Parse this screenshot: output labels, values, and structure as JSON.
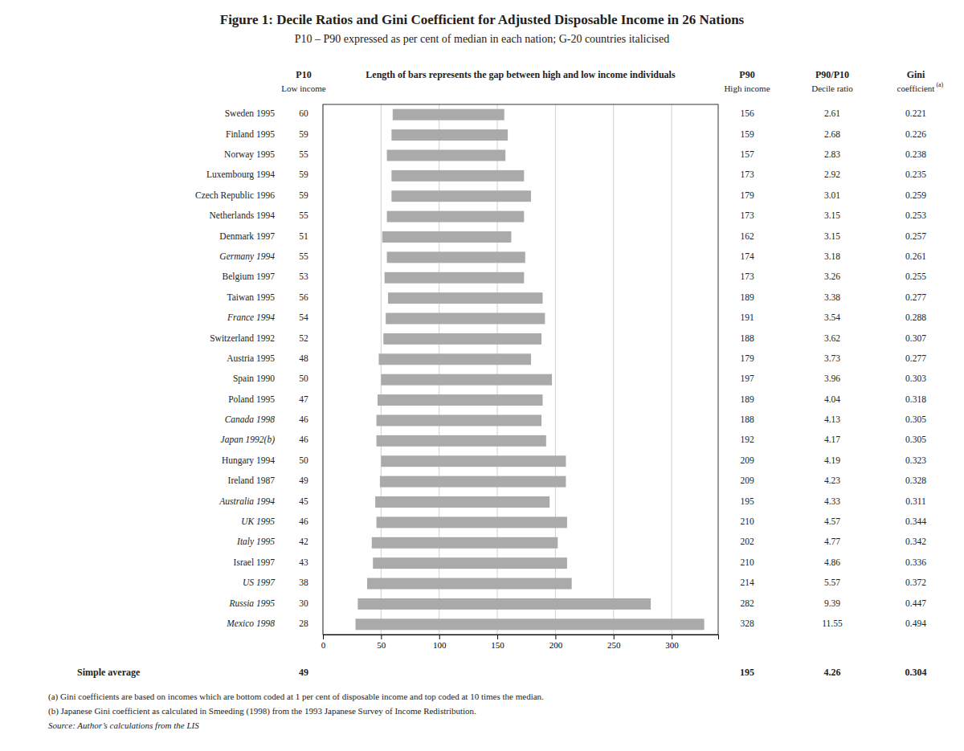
{
  "chart_data": {
    "type": "bar",
    "orientation": "horizontal",
    "title": "Figure 1: Decile Ratios and Gini Coefficient for Adjusted Disposable Income in 26 Nations",
    "subtitle": "P10 – P90 expressed as per cent of median in each nation; G-20 countries italicised",
    "categories": [
      "Sweden 1995",
      "Finland 1995",
      "Norway 1995",
      "Luxembourg 1994",
      "Czech Republic 1996",
      "Netherlands 1994",
      "Denmark 1997",
      "Germany 1994",
      "Belgium 1997",
      "Taiwan 1995",
      "France 1994",
      "Switzerland 1992",
      "Austria 1995",
      "Spain 1990",
      "Poland 1995",
      "Canada 1998",
      "Japan 1992(b)",
      "Hungary 1994",
      "Ireland 1987",
      "Australia 1994",
      "UK 1995",
      "Italy 1995",
      "Israel 1997",
      "US 1997",
      "Russia 1995",
      "Mexico 1998"
    ],
    "italic_categories": [
      "Germany 1994",
      "France 1994",
      "Canada 1998",
      "Japan 1992(b)",
      "Australia 1994",
      "UK 1995",
      "Italy 1995",
      "US 1997",
      "Russia 1995",
      "Mexico 1998"
    ],
    "p10": [
      60,
      59,
      55,
      59,
      59,
      55,
      51,
      55,
      53,
      56,
      54,
      52,
      48,
      50,
      47,
      46,
      46,
      50,
      49,
      45,
      46,
      42,
      43,
      38,
      30,
      28
    ],
    "p90": [
      156,
      159,
      157,
      173,
      179,
      173,
      162,
      174,
      173,
      189,
      191,
      188,
      179,
      197,
      189,
      188,
      192,
      209,
      209,
      195,
      210,
      202,
      210,
      214,
      282,
      328
    ],
    "decile_ratio": [
      2.61,
      2.68,
      2.83,
      2.92,
      3.01,
      3.15,
      3.15,
      3.18,
      3.26,
      3.38,
      3.54,
      3.62,
      3.73,
      3.96,
      4.04,
      4.13,
      4.17,
      4.19,
      4.23,
      4.33,
      4.57,
      4.77,
      4.86,
      5.57,
      9.39,
      11.55
    ],
    "gini": [
      0.221,
      0.226,
      0.238,
      0.235,
      0.259,
      0.253,
      0.257,
      0.261,
      0.255,
      0.277,
      0.288,
      0.307,
      0.277,
      0.303,
      0.318,
      0.305,
      0.305,
      0.323,
      0.328,
      0.311,
      0.344,
      0.342,
      0.336,
      0.372,
      0.447,
      0.494
    ],
    "column_headers": {
      "p10": {
        "title": "P10",
        "subtitle": "Low income"
      },
      "bars": {
        "title": "Length of bars represents the gap between high and low income individuals"
      },
      "p90": {
        "title": "P90",
        "subtitle": "High income"
      },
      "decile_ratio": {
        "title": "P90/P10",
        "subtitle": "Decile ratio"
      },
      "gini": {
        "title": "Gini",
        "subtitle": "coefficient",
        "note": "(a)"
      }
    },
    "average": {
      "label": "Simple average",
      "p10": 49,
      "p90": 195,
      "decile_ratio": 4.26,
      "gini": 0.304
    },
    "footnotes": [
      "(a)   Gini coefficients are based on incomes which are bottom coded at 1 per cent of disposable income and top coded at 10 times the median.",
      "(b)   Japanese Gini coefficient as calculated in Smeeding (1998) from the 1993 Japanese Survey of Income Redistribution."
    ],
    "source": "Source: Author’s calculations from the LIS",
    "color": "#aaaaaa",
    "xlim": [
      0,
      340
    ],
    "xticks": [
      0,
      50,
      100,
      150,
      200,
      250,
      300
    ],
    "grid": true
  }
}
